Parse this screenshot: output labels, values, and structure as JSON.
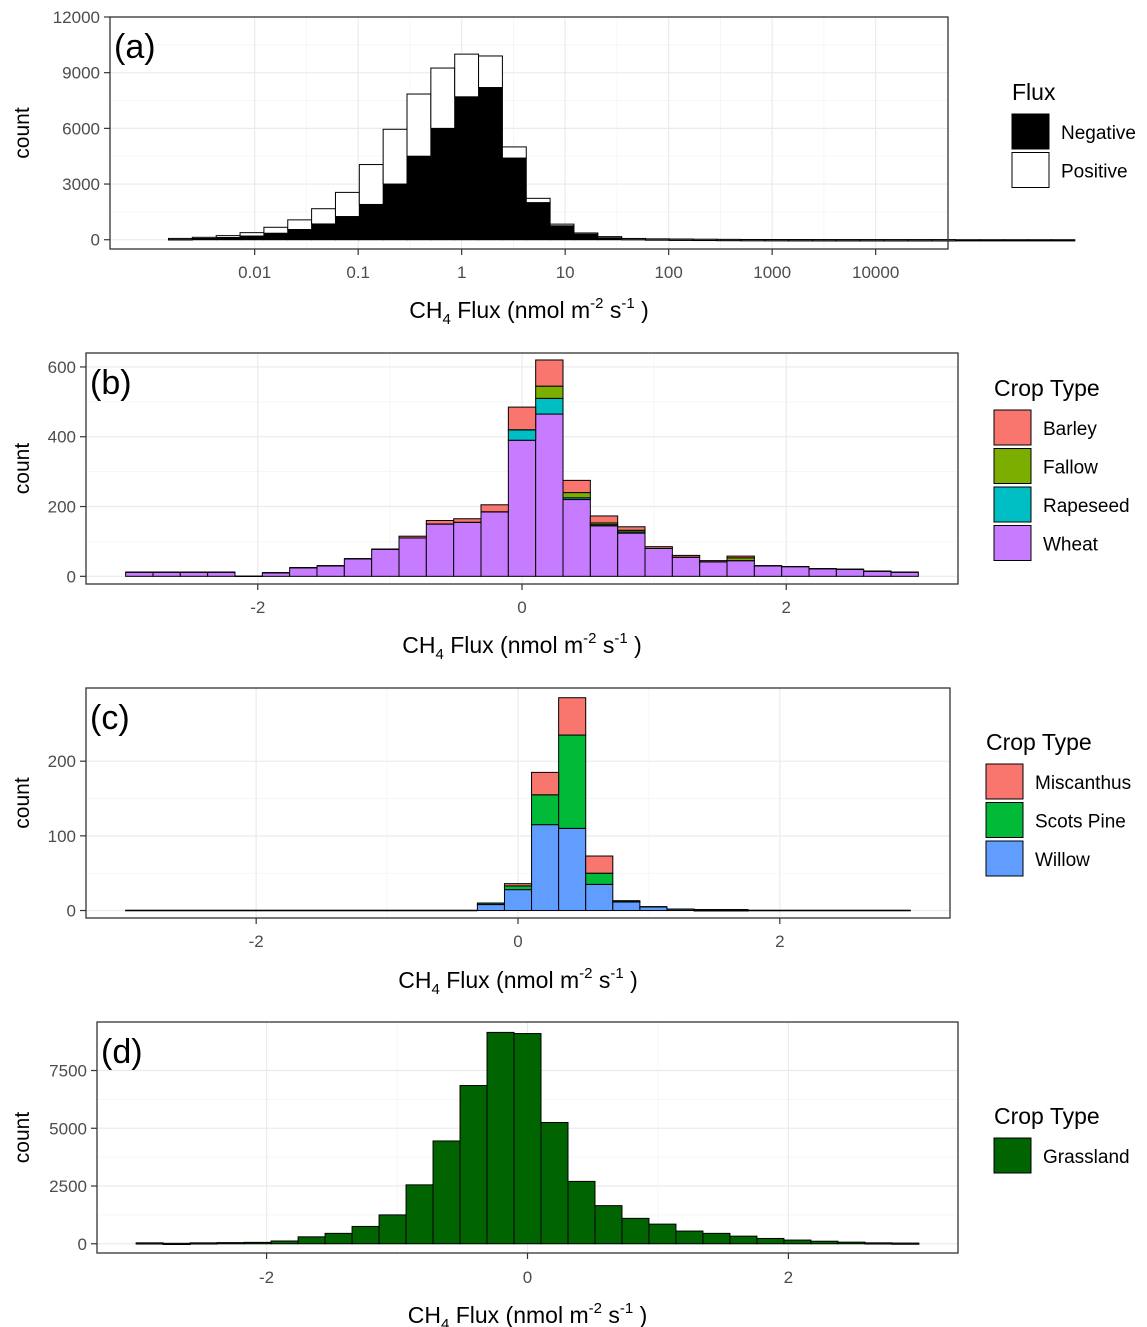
{
  "chart_data": [
    {
      "type": "bar",
      "panel_label": "(a)",
      "xscale": "log",
      "xlabel": {
        "main": "CH",
        "sub": "4",
        "rest": " Flux  (nmol  m",
        "sup1": "-2",
        "mid": " s",
        "sup2": "-1",
        "end": "  )"
      },
      "ylabel": "count",
      "yticks": [
        0,
        3000,
        6000,
        9000,
        12000
      ],
      "ylim": [
        -500,
        12000
      ],
      "xticks": [
        {
          "v": 0.01,
          "label": "0.01"
        },
        {
          "v": 0.1,
          "label": "0.1"
        },
        {
          "v": 1,
          "label": "1"
        },
        {
          "v": 10,
          "label": "10"
        },
        {
          "v": 100,
          "label": "100"
        },
        {
          "v": 1000,
          "label": "1000"
        },
        {
          "v": 10000,
          "label": "10000"
        }
      ],
      "legend": {
        "title": "Flux",
        "entries": [
          "Negative",
          "Positive"
        ]
      },
      "colors": {
        "Negative": "#000000",
        "Positive": "#ffffff"
      },
      "bins_start": 0.00147,
      "bins_ratio": 1.7,
      "series": [
        {
          "name": "Negative",
          "values": [
            50,
            80,
            120,
            200,
            350,
            550,
            850,
            1250,
            1900,
            3000,
            4500,
            6000,
            7700,
            8200,
            4400,
            2000,
            750,
            330,
            150,
            60,
            40,
            30,
            20,
            15,
            10,
            8,
            5,
            3,
            2,
            2,
            1,
            1,
            1,
            1,
            1,
            1,
            1,
            1,
            0,
            0,
            0,
            0,
            0,
            0
          ]
        },
        {
          "name": "Positive",
          "values": [
            20,
            50,
            100,
            180,
            320,
            520,
            820,
            1300,
            2150,
            2950,
            3350,
            3250,
            2300,
            1700,
            600,
            230,
            90,
            35,
            15,
            8,
            6,
            4,
            3,
            2,
            2,
            1,
            1,
            1,
            1,
            1,
            1,
            1,
            1,
            0,
            0,
            0,
            0,
            0,
            0,
            0,
            0,
            0,
            0,
            0
          ]
        }
      ]
    },
    {
      "type": "bar",
      "panel_label": "(b)",
      "xlabel": {
        "main": "CH",
        "sub": "4",
        "rest": " Flux  (nmol  m",
        "sup1": "-2",
        "mid": " s",
        "sup2": "-1",
        "end": "  )"
      },
      "ylabel": "count",
      "yticks": [
        0,
        200,
        400,
        600
      ],
      "ylim": [
        -22,
        640
      ],
      "xlim": [
        -3.3,
        3.3
      ],
      "xticks": [
        {
          "v": -2,
          "label": "-2"
        },
        {
          "v": 0,
          "label": "0"
        },
        {
          "v": 2,
          "label": "2"
        }
      ],
      "legend": {
        "title": "Crop Type",
        "entries": [
          "Barley",
          "Fallow",
          "Rapeseed",
          "Wheat"
        ]
      },
      "colors": {
        "Barley": "#f8766d",
        "Fallow": "#7cae00",
        "Rapeseed": "#00bfc4",
        "Wheat": "#c77cff"
      },
      "bin_width": 0.2069,
      "bin_start": -3.0,
      "series": [
        {
          "name": "Wheat",
          "values": [
            12,
            12,
            12,
            12,
            0,
            10,
            25,
            30,
            50,
            78,
            110,
            150,
            155,
            185,
            390,
            465,
            220,
            145,
            125,
            80,
            55,
            42,
            45,
            30,
            28,
            22,
            20,
            15,
            12
          ]
        },
        {
          "name": "Rapeseed",
          "values": [
            0,
            0,
            0,
            0,
            0,
            0,
            0,
            0,
            0,
            0,
            0,
            0,
            0,
            0,
            30,
            45,
            5,
            3,
            2,
            0,
            0,
            0,
            0,
            0,
            0,
            0,
            0,
            0,
            0
          ]
        },
        {
          "name": "Fallow",
          "values": [
            0,
            0,
            0,
            0,
            0,
            0,
            0,
            0,
            0,
            0,
            0,
            0,
            0,
            0,
            0,
            35,
            15,
            5,
            5,
            0,
            0,
            0,
            8,
            0,
            0,
            0,
            0,
            0,
            0
          ]
        },
        {
          "name": "Barley",
          "values": [
            0,
            0,
            0,
            0,
            0,
            0,
            0,
            0,
            0,
            0,
            5,
            10,
            10,
            20,
            65,
            75,
            35,
            20,
            10,
            5,
            5,
            3,
            5,
            0,
            0,
            0,
            0,
            0,
            0
          ]
        }
      ]
    },
    {
      "type": "bar",
      "panel_label": "(c)",
      "xlabel": {
        "main": "CH",
        "sub": "4",
        "rest": " Flux  (nmol  m",
        "sup1": "-2",
        "mid": " s",
        "sup2": "-1",
        "end": "  )"
      },
      "ylabel": "count",
      "yticks": [
        0,
        100,
        200
      ],
      "ylim": [
        -10,
        298
      ],
      "xlim": [
        -3.3,
        3.3
      ],
      "xticks": [
        {
          "v": -2,
          "label": "-2"
        },
        {
          "v": 0,
          "label": "0"
        },
        {
          "v": 2,
          "label": "2"
        }
      ],
      "legend": {
        "title": "Crop Type",
        "entries": [
          "Miscanthus",
          "Scots Pine",
          "Willow"
        ]
      },
      "colors": {
        "Miscanthus": "#f8766d",
        "Scots Pine": "#00ba38",
        "Willow": "#619cff"
      },
      "bin_width": 0.2069,
      "bin_start": -3.0,
      "series": [
        {
          "name": "Willow",
          "values": [
            0,
            0,
            0,
            0,
            0,
            0,
            0,
            0,
            0,
            0,
            0,
            0,
            0,
            8,
            28,
            115,
            110,
            35,
            12,
            5,
            2,
            1,
            1,
            0,
            0,
            0,
            0,
            0,
            0
          ]
        },
        {
          "name": "Scots Pine",
          "values": [
            0,
            0,
            0,
            0,
            0,
            0,
            0,
            0,
            0,
            0,
            0,
            0,
            0,
            2,
            5,
            40,
            125,
            15,
            1,
            0,
            0,
            0,
            0,
            0,
            0,
            0,
            0,
            0,
            0
          ]
        },
        {
          "name": "Miscanthus",
          "values": [
            0,
            0,
            0,
            0,
            0,
            0,
            0,
            0,
            0,
            0,
            0,
            0,
            0,
            0,
            3,
            30,
            50,
            23,
            0,
            0,
            0,
            0,
            0,
            0,
            0,
            0,
            0,
            0,
            0
          ]
        }
      ]
    },
    {
      "type": "bar",
      "panel_label": "(d)",
      "xlabel": {
        "main": "CH",
        "sub": "4",
        "rest": " Flux  (nmol  m",
        "sup1": "-2",
        "mid": " s",
        "sup2": "-1",
        "end": "  )"
      },
      "ylabel": "count",
      "yticks": [
        0,
        2500,
        5000,
        7500
      ],
      "ylim": [
        -400,
        9600
      ],
      "xlim": [
        -3.3,
        3.3
      ],
      "xticks": [
        {
          "v": -2,
          "label": "-2"
        },
        {
          "v": 0,
          "label": "0"
        },
        {
          "v": 2,
          "label": "2"
        }
      ],
      "legend": {
        "title": "Crop Type",
        "entries": [
          "Grassland"
        ]
      },
      "colors": {
        "Grassland": "#006400"
      },
      "bin_width": 0.2069,
      "bin_start": -3.0,
      "series": [
        {
          "name": "Grassland",
          "values": [
            40,
            20,
            40,
            50,
            60,
            120,
            300,
            450,
            750,
            1250,
            2550,
            4450,
            6850,
            9150,
            9100,
            5250,
            2700,
            1650,
            1100,
            850,
            550,
            450,
            330,
            230,
            160,
            110,
            70,
            40,
            30
          ]
        }
      ]
    }
  ]
}
